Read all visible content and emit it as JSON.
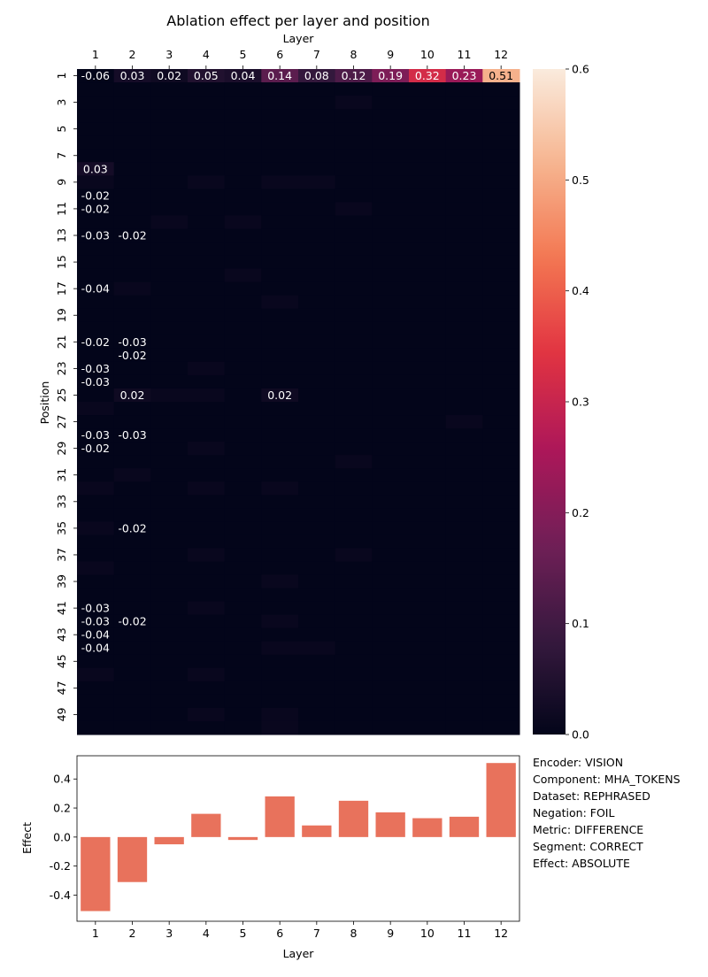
{
  "colors": {
    "cmap": [
      "#03051a",
      "#36193e",
      "#701f57",
      "#ad1759",
      "#e13342",
      "#f37651",
      "#f6b48f",
      "#faebdd"
    ],
    "bar": "#e8725c",
    "axis": "#000000",
    "annotation_light": "#ffffff",
    "annotation_dark": "#000000"
  },
  "chart_data": [
    {
      "type": "heatmap",
      "title": "Ablation effect per layer and position",
      "xlabel": "Layer",
      "ylabel": "Position",
      "x_axis_position": "top",
      "x_categories": [
        "1",
        "2",
        "3",
        "4",
        "5",
        "6",
        "7",
        "8",
        "9",
        "10",
        "11",
        "12"
      ],
      "y_categories": [
        "1",
        "2",
        "3",
        "4",
        "5",
        "6",
        "7",
        "8",
        "9",
        "10",
        "11",
        "12",
        "13",
        "14",
        "15",
        "16",
        "17",
        "18",
        "19",
        "20",
        "21",
        "22",
        "23",
        "24",
        "25",
        "26",
        "27",
        "28",
        "29",
        "30",
        "31",
        "32",
        "33",
        "34",
        "35",
        "36",
        "37",
        "38",
        "39",
        "40",
        "41",
        "42",
        "43",
        "44",
        "45",
        "46",
        "47",
        "48",
        "49",
        "50"
      ],
      "y_tick_labels_shown": [
        "1",
        "3",
        "5",
        "7",
        "9",
        "11",
        "13",
        "15",
        "17",
        "19",
        "21",
        "23",
        "25",
        "27",
        "29",
        "31",
        "33",
        "35",
        "37",
        "39",
        "41",
        "43",
        "45",
        "47",
        "49"
      ],
      "vmin": 0,
      "vmax": 0.6,
      "colorbar_ticks": [
        "0.0",
        "0.1",
        "0.2",
        "0.3",
        "0.4",
        "0.5",
        "0.6"
      ],
      "default_value": 0.0,
      "values_row1": [
        -0.06,
        0.03,
        0.02,
        0.05,
        0.04,
        0.14,
        0.08,
        0.12,
        0.19,
        0.32,
        0.23,
        0.51
      ],
      "cells": [
        {
          "row": 3,
          "col": 8,
          "value": 0.01
        },
        {
          "row": 8,
          "col": 1,
          "value": 0.03
        },
        {
          "row": 9,
          "col": 1,
          "value": 0.01
        },
        {
          "row": 9,
          "col": 4,
          "value": 0.01
        },
        {
          "row": 9,
          "col": 6,
          "value": 0.01
        },
        {
          "row": 9,
          "col": 7,
          "value": 0.01
        },
        {
          "row": 10,
          "col": 1,
          "value": -0.02
        },
        {
          "row": 11,
          "col": 1,
          "value": -0.02
        },
        {
          "row": 11,
          "col": 8,
          "value": 0.01
        },
        {
          "row": 12,
          "col": 3,
          "value": 0.01
        },
        {
          "row": 12,
          "col": 5,
          "value": 0.01
        },
        {
          "row": 13,
          "col": 1,
          "value": -0.03
        },
        {
          "row": 13,
          "col": 2,
          "value": -0.02
        },
        {
          "row": 16,
          "col": 5,
          "value": 0.01
        },
        {
          "row": 17,
          "col": 1,
          "value": -0.04
        },
        {
          "row": 17,
          "col": 2,
          "value": 0.01
        },
        {
          "row": 18,
          "col": 6,
          "value": 0.01
        },
        {
          "row": 21,
          "col": 1,
          "value": -0.02
        },
        {
          "row": 21,
          "col": 2,
          "value": -0.03
        },
        {
          "row": 22,
          "col": 2,
          "value": -0.02
        },
        {
          "row": 23,
          "col": 1,
          "value": -0.03
        },
        {
          "row": 23,
          "col": 4,
          "value": 0.01
        },
        {
          "row": 24,
          "col": 1,
          "value": -0.03
        },
        {
          "row": 25,
          "col": 2,
          "value": 0.02
        },
        {
          "row": 25,
          "col": 3,
          "value": 0.01
        },
        {
          "row": 25,
          "col": 4,
          "value": 0.01
        },
        {
          "row": 25,
          "col": 6,
          "value": 0.02
        },
        {
          "row": 26,
          "col": 1,
          "value": 0.01
        },
        {
          "row": 27,
          "col": 11,
          "value": 0.01
        },
        {
          "row": 28,
          "col": 1,
          "value": -0.03
        },
        {
          "row": 28,
          "col": 2,
          "value": -0.03
        },
        {
          "row": 29,
          "col": 1,
          "value": -0.02
        },
        {
          "row": 29,
          "col": 4,
          "value": 0.01
        },
        {
          "row": 30,
          "col": 8,
          "value": 0.01
        },
        {
          "row": 31,
          "col": 2,
          "value": 0.01
        },
        {
          "row": 32,
          "col": 1,
          "value": 0.01
        },
        {
          "row": 32,
          "col": 4,
          "value": 0.01
        },
        {
          "row": 32,
          "col": 6,
          "value": 0.01
        },
        {
          "row": 35,
          "col": 1,
          "value": 0.01
        },
        {
          "row": 35,
          "col": 2,
          "value": -0.02
        },
        {
          "row": 37,
          "col": 4,
          "value": 0.01
        },
        {
          "row": 37,
          "col": 8,
          "value": 0.01
        },
        {
          "row": 38,
          "col": 1,
          "value": 0.01
        },
        {
          "row": 39,
          "col": 6,
          "value": 0.01
        },
        {
          "row": 41,
          "col": 1,
          "value": -0.03
        },
        {
          "row": 41,
          "col": 4,
          "value": 0.01
        },
        {
          "row": 42,
          "col": 1,
          "value": -0.03
        },
        {
          "row": 42,
          "col": 2,
          "value": -0.02
        },
        {
          "row": 42,
          "col": 6,
          "value": 0.01
        },
        {
          "row": 43,
          "col": 1,
          "value": -0.04
        },
        {
          "row": 44,
          "col": 1,
          "value": -0.04
        },
        {
          "row": 44,
          "col": 6,
          "value": 0.01
        },
        {
          "row": 44,
          "col": 7,
          "value": 0.01
        },
        {
          "row": 46,
          "col": 1,
          "value": 0.01
        },
        {
          "row": 46,
          "col": 4,
          "value": 0.01
        },
        {
          "row": 49,
          "col": 6,
          "value": 0.01
        },
        {
          "row": 49,
          "col": 4,
          "value": 0.01
        },
        {
          "row": 50,
          "col": 6,
          "value": 0.01
        }
      ],
      "annotations": [
        {
          "row": 1,
          "col": 1,
          "text": "-0.06"
        },
        {
          "row": 1,
          "col": 2,
          "text": "0.03"
        },
        {
          "row": 1,
          "col": 3,
          "text": "0.02"
        },
        {
          "row": 1,
          "col": 4,
          "text": "0.05"
        },
        {
          "row": 1,
          "col": 5,
          "text": "0.04"
        },
        {
          "row": 1,
          "col": 6,
          "text": "0.14"
        },
        {
          "row": 1,
          "col": 7,
          "text": "0.08"
        },
        {
          "row": 1,
          "col": 8,
          "text": "0.12"
        },
        {
          "row": 1,
          "col": 9,
          "text": "0.19"
        },
        {
          "row": 1,
          "col": 10,
          "text": "0.32"
        },
        {
          "row": 1,
          "col": 11,
          "text": "0.23"
        },
        {
          "row": 1,
          "col": 12,
          "text": "0.51"
        },
        {
          "row": 8,
          "col": 1,
          "text": "0.03"
        },
        {
          "row": 10,
          "col": 1,
          "text": "-0.02"
        },
        {
          "row": 11,
          "col": 1,
          "text": "-0.02"
        },
        {
          "row": 13,
          "col": 1,
          "text": "-0.03"
        },
        {
          "row": 13,
          "col": 2,
          "text": "-0.02"
        },
        {
          "row": 17,
          "col": 1,
          "text": "-0.04"
        },
        {
          "row": 21,
          "col": 1,
          "text": "-0.02"
        },
        {
          "row": 21,
          "col": 2,
          "text": "-0.03"
        },
        {
          "row": 22,
          "col": 2,
          "text": "-0.02"
        },
        {
          "row": 23,
          "col": 1,
          "text": "-0.03"
        },
        {
          "row": 24,
          "col": 1,
          "text": "-0.03"
        },
        {
          "row": 25,
          "col": 2,
          "text": "0.02"
        },
        {
          "row": 25,
          "col": 6,
          "text": "0.02"
        },
        {
          "row": 28,
          "col": 1,
          "text": "-0.03"
        },
        {
          "row": 28,
          "col": 2,
          "text": "-0.03"
        },
        {
          "row": 29,
          "col": 1,
          "text": "-0.02"
        },
        {
          "row": 35,
          "col": 2,
          "text": "-0.02"
        },
        {
          "row": 41,
          "col": 1,
          "text": "-0.03"
        },
        {
          "row": 42,
          "col": 1,
          "text": "-0.03"
        },
        {
          "row": 42,
          "col": 2,
          "text": "-0.02"
        },
        {
          "row": 43,
          "col": 1,
          "text": "-0.04"
        },
        {
          "row": 44,
          "col": 1,
          "text": "-0.04"
        }
      ]
    },
    {
      "type": "bar",
      "xlabel": "Layer",
      "ylabel": "Effect",
      "categories": [
        "1",
        "2",
        "3",
        "4",
        "5",
        "6",
        "7",
        "8",
        "9",
        "10",
        "11",
        "12"
      ],
      "values": [
        -0.51,
        -0.31,
        -0.05,
        0.16,
        -0.02,
        0.28,
        0.08,
        0.25,
        0.17,
        0.13,
        0.14,
        0.51
      ],
      "ylim": [
        -0.58,
        0.56
      ],
      "yticks": [
        "-0.4",
        "-0.2",
        "0.0",
        "0.2",
        "0.4"
      ],
      "ytick_values": [
        -0.4,
        -0.2,
        0.0,
        0.2,
        0.4
      ]
    }
  ],
  "info": [
    "Encoder: VISION",
    "Component: MHA_TOKENS",
    "Dataset: REPHRASED",
    "Negation: FOIL",
    "Metric: DIFFERENCE",
    "Segment: CORRECT",
    "Effect: ABSOLUTE"
  ]
}
